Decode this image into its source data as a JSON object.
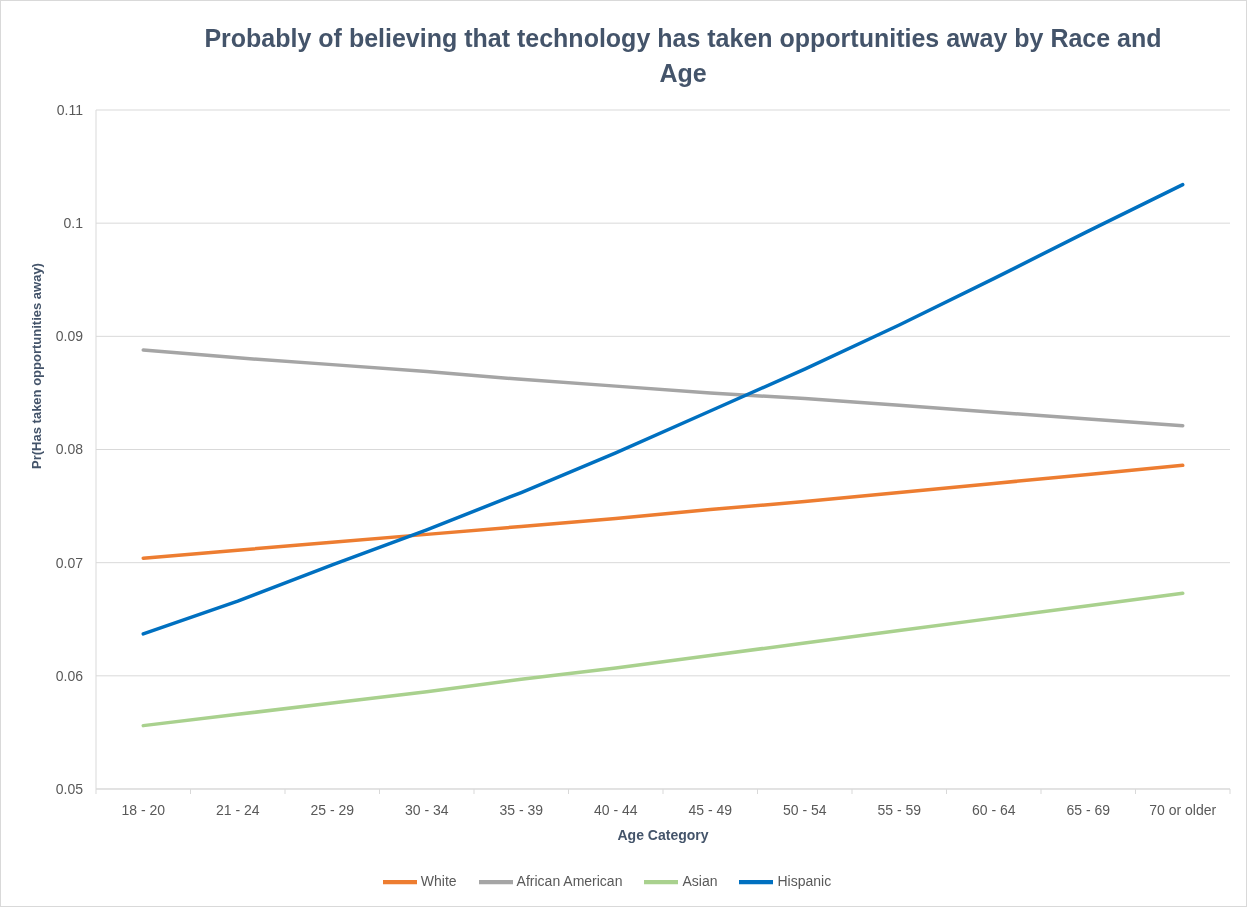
{
  "chart_data": {
    "type": "line",
    "title": "Probably of believing that technology has taken opportunities away by Race and Age",
    "xlabel": "Age Category",
    "ylabel": "Pr(Has taken opportunities away)",
    "categories": [
      "18 - 20",
      "21 - 24",
      "25 - 29",
      "30 - 34",
      "35 - 39",
      "40 - 44",
      "45 - 49",
      "50 - 54",
      "55 - 59",
      "60 - 64",
      "65 - 69",
      "70 or older"
    ],
    "series": [
      {
        "name": "White",
        "color": "#ed7d31",
        "values": [
          0.0704,
          0.0711,
          0.0718,
          0.0725,
          0.0732,
          0.0739,
          0.0747,
          0.0754,
          0.0762,
          0.077,
          0.0778,
          0.0786
        ]
      },
      {
        "name": "African American",
        "color": "#a5a5a5",
        "values": [
          0.0888,
          0.0881,
          0.0875,
          0.0869,
          0.0862,
          0.0856,
          0.085,
          0.0845,
          0.0839,
          0.0833,
          0.0827,
          0.0821
        ]
      },
      {
        "name": "Asian",
        "color": "#a9d18e",
        "values": [
          0.0556,
          0.0566,
          0.0576,
          0.0586,
          0.0597,
          0.0607,
          0.0618,
          0.0629,
          0.064,
          0.0651,
          0.0662,
          0.0673
        ]
      },
      {
        "name": "Hispanic",
        "color": "#0070c0",
        "values": [
          0.0637,
          0.0666,
          0.0698,
          0.0729,
          0.0762,
          0.0797,
          0.0834,
          0.0871,
          0.091,
          0.0951,
          0.0993,
          0.1034
        ]
      }
    ],
    "ylim": [
      0.05,
      0.11
    ],
    "yticks": [
      0.05,
      0.06,
      0.07,
      0.08,
      0.09,
      0.1,
      0.11
    ],
    "grid": "y",
    "legend": "bottom",
    "line_style": "solid"
  }
}
